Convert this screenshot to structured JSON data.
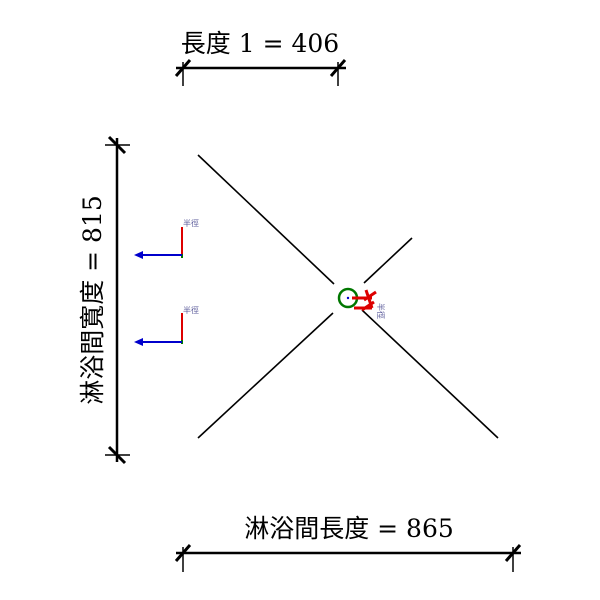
{
  "dimensions": {
    "top": "長度 1 = 406",
    "left": "淋浴間寬度 = 815",
    "bottom": "淋浴間長度 = 865"
  },
  "labels": {
    "radius_1": "半徑",
    "radius_2": "半徑",
    "radius_3": "半徑"
  },
  "colors": {
    "x_axis": "#0000cc",
    "y_axis": "#dd0000",
    "origin": "#007700",
    "line": "#000000"
  }
}
